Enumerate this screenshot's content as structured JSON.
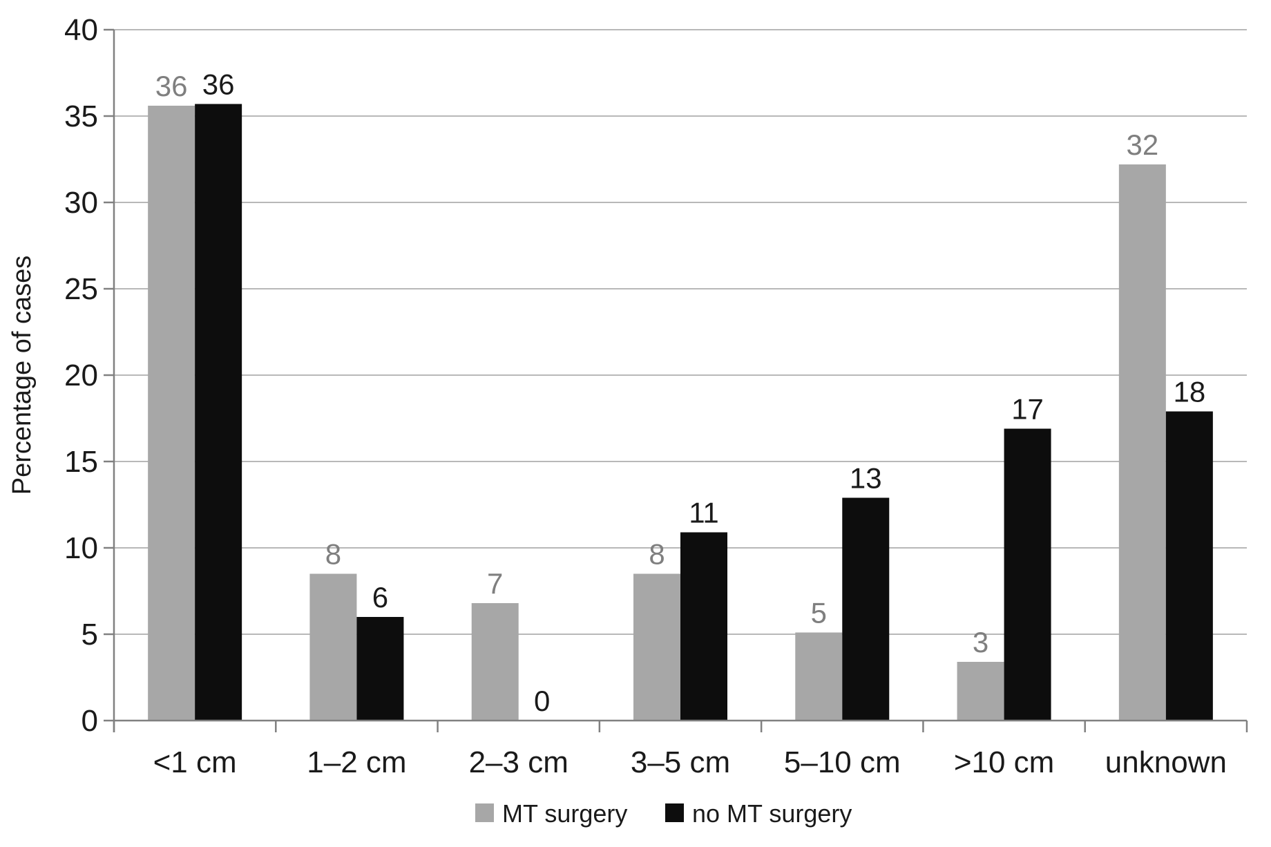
{
  "chart_data": {
    "type": "bar",
    "title": "",
    "xlabel": "",
    "ylabel": "Percentage of cases",
    "categories": [
      "<1 cm",
      "1–2 cm",
      "2–3 cm",
      "3–5 cm",
      "5–10 cm",
      ">10 cm",
      "unknown"
    ],
    "series": [
      {
        "name": "MT surgery",
        "color": "#a7a7a7",
        "label_color": "#7f7f7f",
        "values": [
          35.6,
          8.5,
          6.8,
          8.5,
          5.1,
          3.4,
          32.2
        ],
        "labels": [
          "36",
          "8",
          "7",
          "8",
          "5",
          "3",
          "32"
        ]
      },
      {
        "name": "no MT surgery",
        "color": "#0d0d0d",
        "label_color": "#1a1a1a",
        "values": [
          35.7,
          6.0,
          0,
          10.9,
          12.9,
          16.9,
          17.9
        ],
        "labels": [
          "36",
          "6",
          "0",
          "11",
          "13",
          "17",
          "18"
        ]
      }
    ],
    "ylim": [
      0,
      40
    ],
    "yticks": [
      0,
      5,
      10,
      15,
      20,
      25,
      30,
      35,
      40
    ],
    "grid": true,
    "legend_position": "bottom"
  },
  "colors": {
    "axis": "#808080",
    "gridline": "#a0a0a0",
    "tick_label": "#1a1a1a",
    "axis_title": "#1a1a1a",
    "legend_text": "#1a1a1a",
    "background": "#ffffff"
  }
}
